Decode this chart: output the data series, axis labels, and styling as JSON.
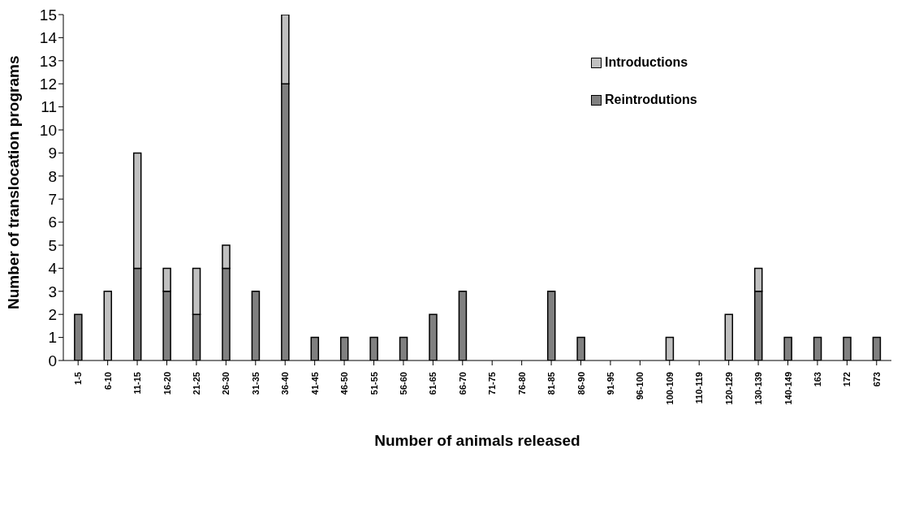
{
  "chart_data": {
    "type": "bar",
    "stacked": true,
    "xlabel": "Number of animals released",
    "ylabel": "Number of translocation programs",
    "categories": [
      "1-5",
      "6-10",
      "11-15",
      "16-20",
      "21-25",
      "26-30",
      "31-35",
      "36-40",
      "41-45",
      "46-50",
      "51-55",
      "56-60",
      "61-65",
      "66-70",
      "71-75",
      "76-80",
      "81-85",
      "86-90",
      "91-95",
      "96-100",
      "100-109",
      "110-119",
      "120-129",
      "130-139",
      "140-149",
      "163",
      "172",
      "673"
    ],
    "series": [
      {
        "name": "Reintrodutions",
        "color": "#808080",
        "values": [
          2,
          0,
          4,
          3,
          2,
          4,
          3,
          12,
          1,
          1,
          1,
          1,
          2,
          3,
          0,
          0,
          3,
          1,
          0,
          0,
          0,
          0,
          0,
          3,
          1,
          1,
          1,
          1
        ]
      },
      {
        "name": "Introductions",
        "color": "#c0c0c0",
        "values": [
          0,
          3,
          5,
          1,
          2,
          1,
          0,
          3,
          0,
          0,
          0,
          0,
          0,
          0,
          0,
          0,
          0,
          0,
          0,
          0,
          1,
          0,
          2,
          1,
          0,
          0,
          0,
          0
        ]
      }
    ],
    "ylim": [
      0,
      15
    ],
    "yticks": [
      0,
      1,
      2,
      3,
      4,
      5,
      6,
      7,
      8,
      9,
      10,
      11,
      12,
      13,
      14,
      15
    ],
    "grid": false,
    "legend": "top right"
  }
}
